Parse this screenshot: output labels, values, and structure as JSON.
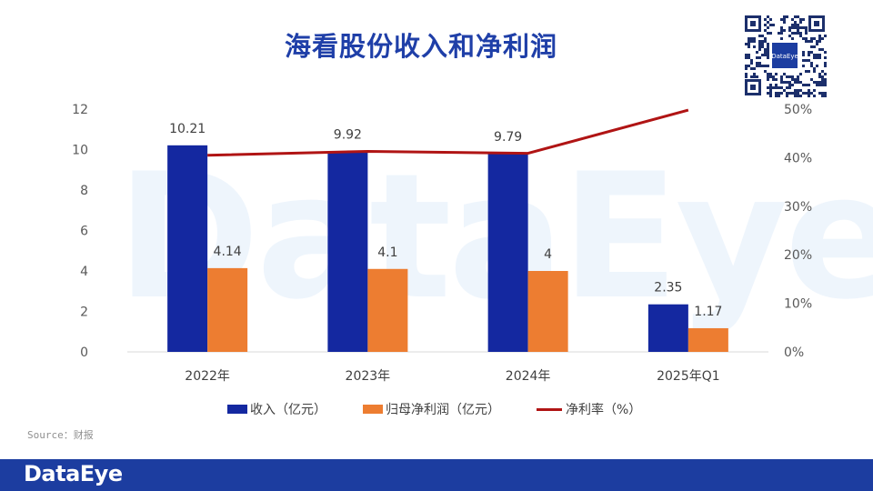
{
  "title": "海看股份收入和净利润",
  "watermark": "DataEye",
  "qr_label": "DataEye",
  "source": "Source：财报",
  "footer_brand": "DataEye",
  "colors": {
    "revenue": "#1428a0",
    "profit": "#ed7d31",
    "margin": "#b01414",
    "title": "#1f3fa8",
    "footer": "#1c3da0"
  },
  "chart_data": {
    "type": "bar",
    "categories": [
      "2022年",
      "2023年",
      "2024年",
      "2025年Q1"
    ],
    "series": [
      {
        "name": "收入（亿元）",
        "type": "bar",
        "axis": "left",
        "values": [
          10.21,
          9.92,
          9.79,
          2.35
        ],
        "labels": [
          "10.21",
          "9.92",
          "9.79",
          "2.35"
        ]
      },
      {
        "name": "归母净利润（亿元）",
        "type": "bar",
        "axis": "left",
        "values": [
          4.14,
          4.1,
          4,
          1.17
        ],
        "labels": [
          "4.14",
          "4.1",
          "4",
          "1.17"
        ]
      },
      {
        "name": "净利率（%）",
        "type": "line",
        "axis": "right",
        "values": [
          40.5,
          41.3,
          40.9,
          49.8
        ]
      }
    ],
    "y_left": {
      "ylim": [
        0,
        12
      ],
      "ticks": [
        "0",
        "2",
        "4",
        "6",
        "8",
        "10",
        "12"
      ]
    },
    "y_right": {
      "ylim": [
        0,
        50
      ],
      "ticks": [
        "0%",
        "10%",
        "20%",
        "30%",
        "40%",
        "50%"
      ]
    },
    "legend": [
      "收入（亿元）",
      "归母净利润（亿元）",
      "净利率（%）"
    ],
    "legend_position": "bottom"
  }
}
